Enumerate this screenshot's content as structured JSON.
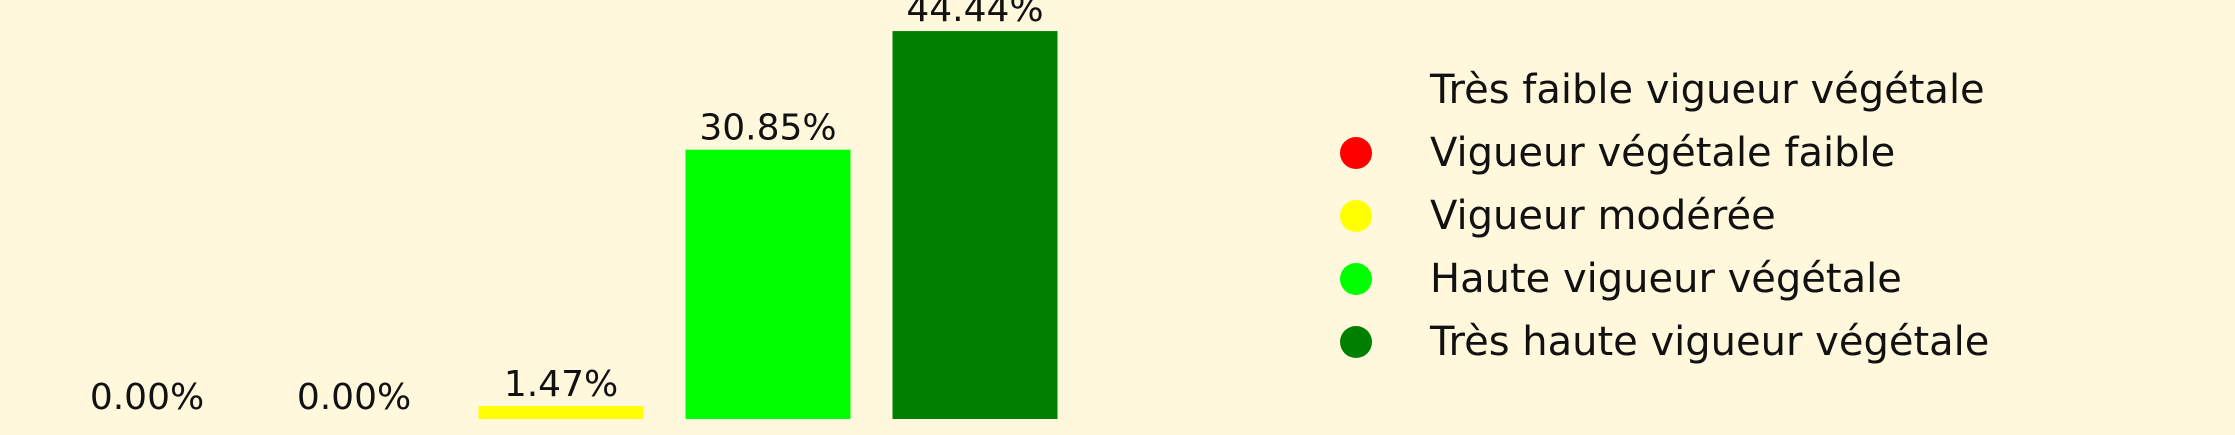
{
  "chart_data": {
    "type": "bar",
    "categories": [
      "Très faible vigueur végétale",
      "Vigueur végétale faible",
      "Vigueur modérée",
      "Haute vigueur végétale",
      "Très haute vigueur végétale"
    ],
    "values": [
      0.0,
      0.0,
      1.47,
      30.85,
      44.44
    ],
    "data_labels": [
      "0.00%",
      "0.00%",
      "1.47%",
      "30.85%",
      "44.44%"
    ],
    "colors": [
      "#fff8dc",
      "#ff0000",
      "#ffff00",
      "#00ff00",
      "#008000"
    ],
    "ylim": [
      0,
      48
    ],
    "title": "",
    "xlabel": "",
    "ylabel": "",
    "grid": false,
    "legend": "right"
  },
  "colors": {
    "background": "#fff8dc"
  }
}
